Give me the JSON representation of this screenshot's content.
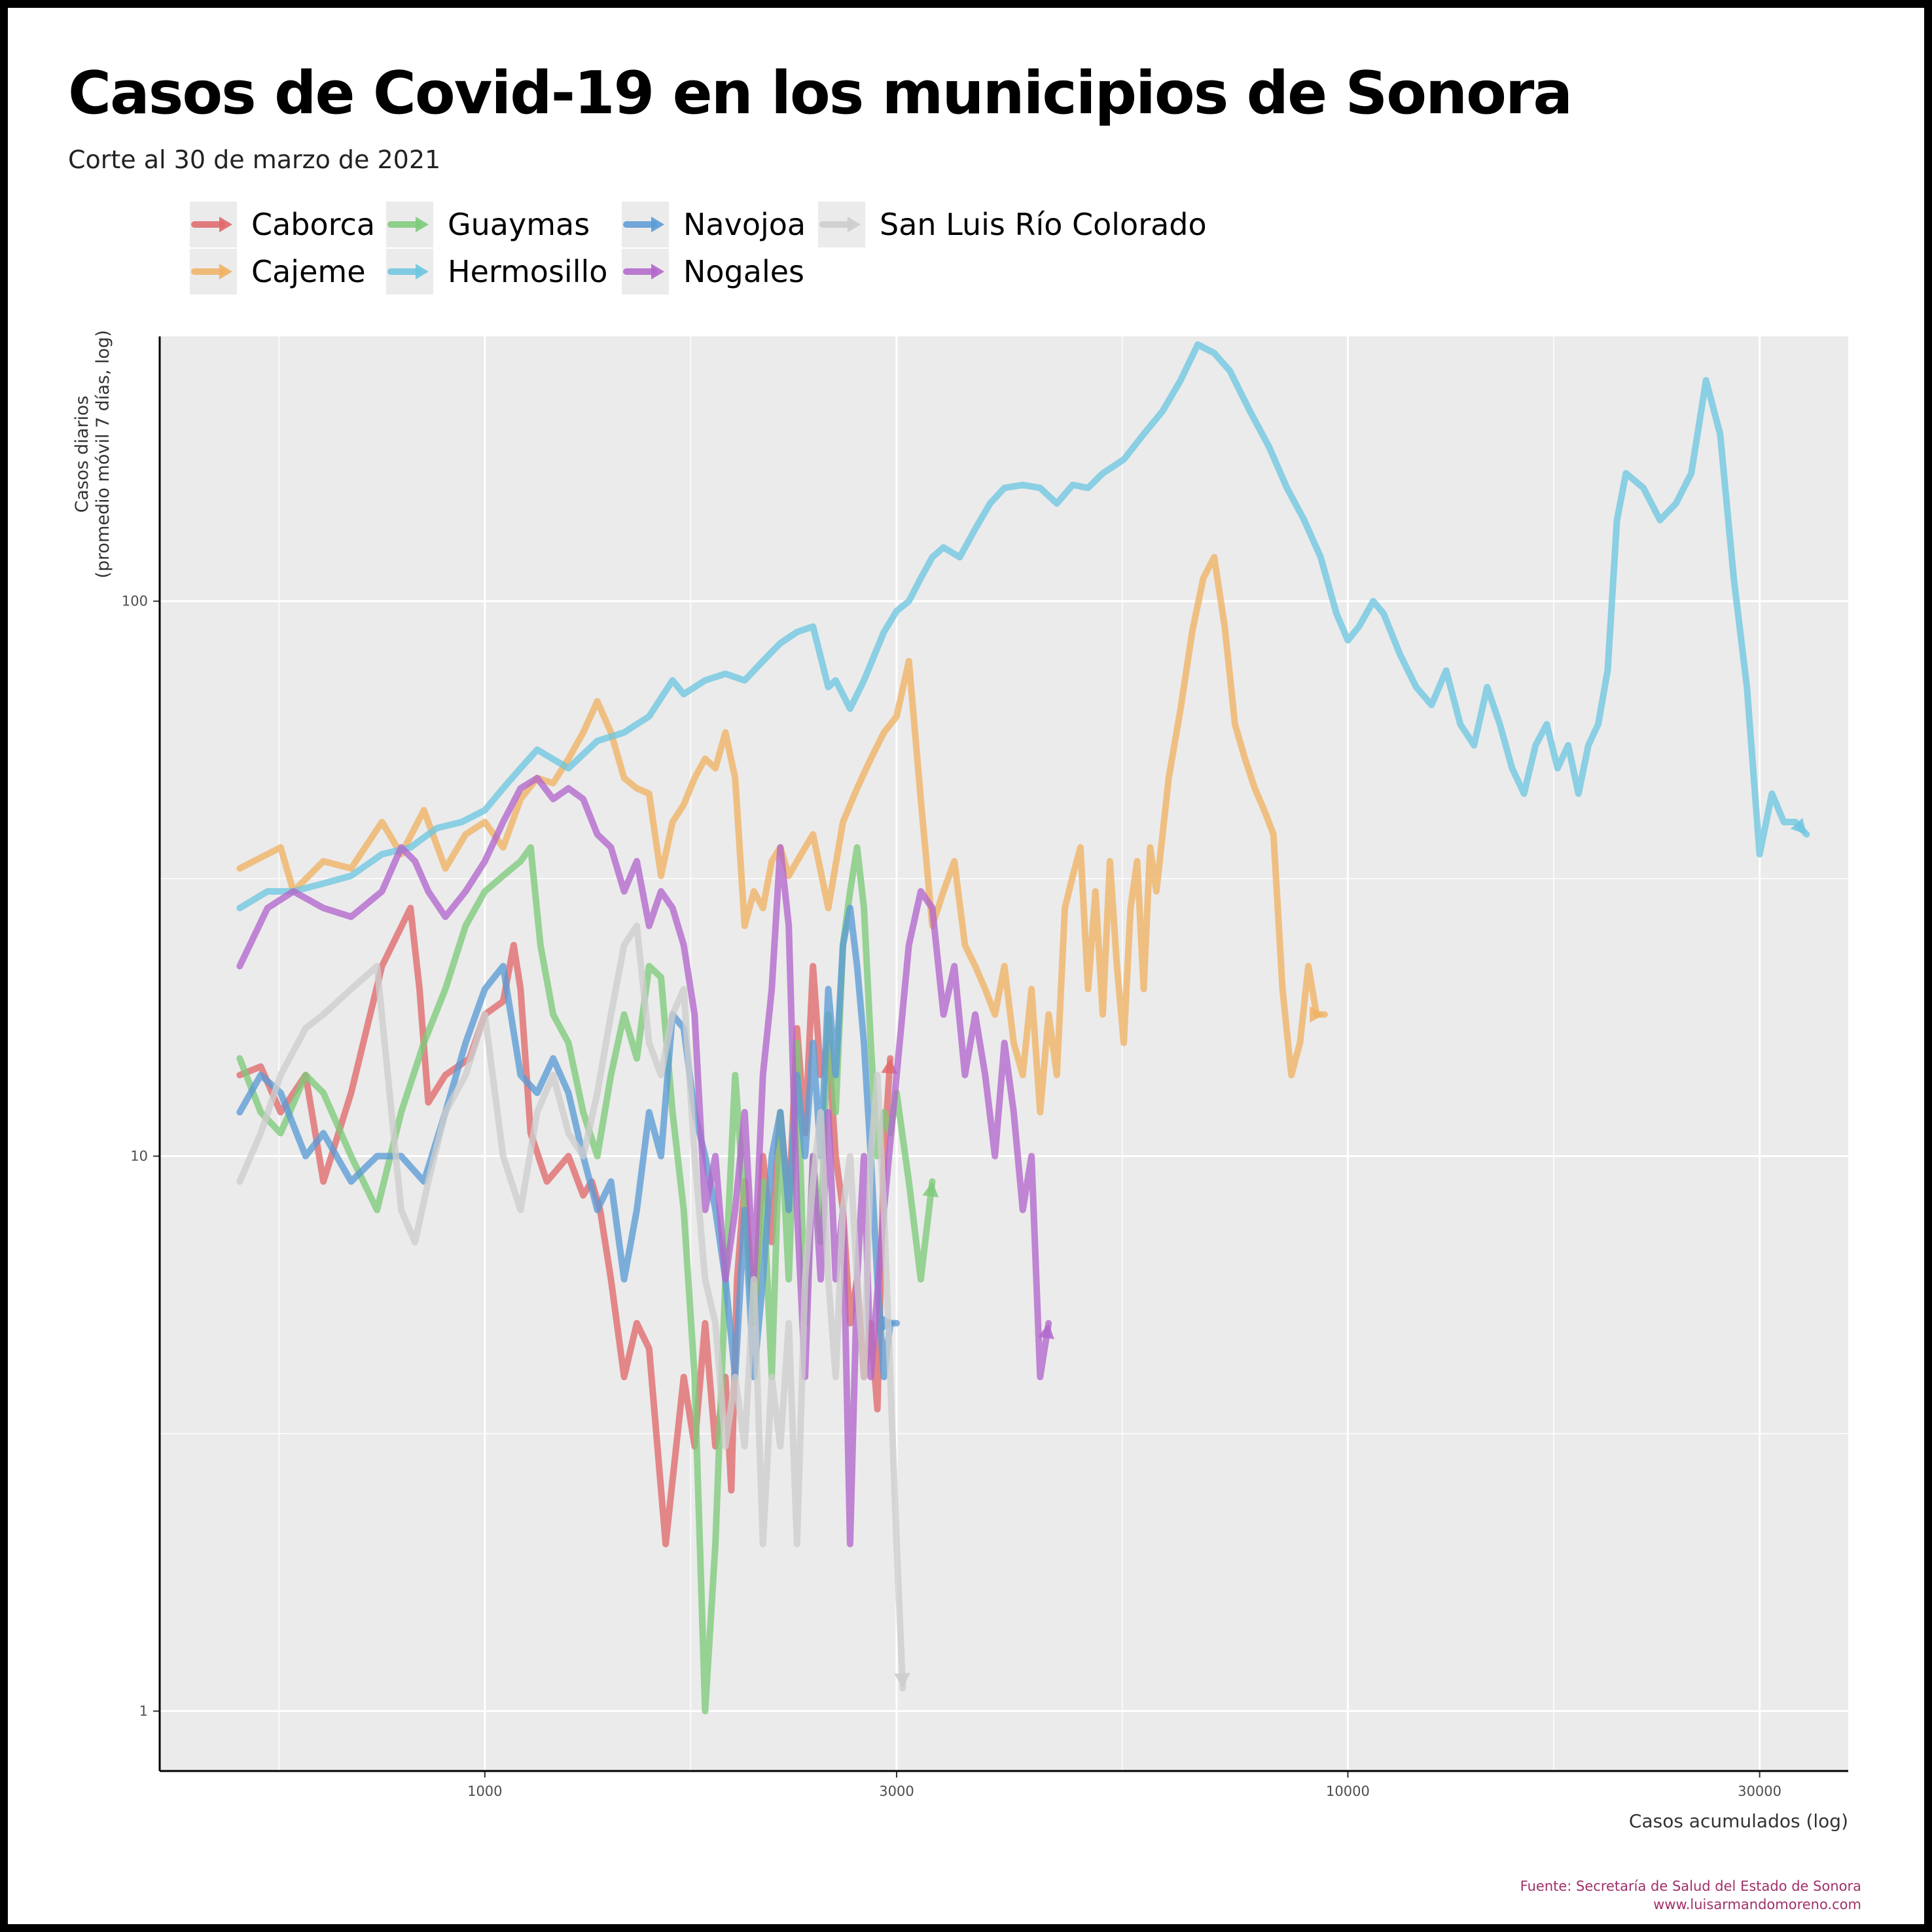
{
  "title": "Casos de Covid-19 en los municipios de Sonora",
  "subtitle": "Corte al 30 de marzo de 2021",
  "source_line1": "Fuente: Secretaría de Salud del Estado de Sonora",
  "source_line2": "www.luisarmandomoreno.com",
  "chart_data": {
    "type": "line",
    "title": "Casos de Covid-19 en los municipios de Sonora",
    "subtitle": "Corte al 30 de marzo de 2021",
    "xlabel": "Casos acumulados (log)",
    "ylabel": "Casos diarios (promedio móvil 7 días, log)",
    "x_scale": "log",
    "y_scale": "log",
    "xlim": [
      420,
      38000
    ],
    "ylim": [
      0.78,
      300
    ],
    "x_ticks": [
      1000,
      3000,
      10000,
      30000
    ],
    "x_tick_labels": [
      "1000",
      "3000",
      "10000",
      "30000"
    ],
    "y_ticks": [
      1,
      10,
      100
    ],
    "y_tick_labels": [
      "1",
      "10",
      "100"
    ],
    "grid": true,
    "legend_position": "top",
    "series": [
      {
        "name": "Caborca",
        "color": "#e0696c",
        "x": [
          520,
          550,
          580,
          620,
          650,
          700,
          760,
          820,
          840,
          860,
          900,
          960,
          1000,
          1050,
          1080,
          1100,
          1130,
          1180,
          1250,
          1300,
          1330,
          1360,
          1400,
          1450,
          1500,
          1550,
          1620,
          1700,
          1750,
          1800,
          1850,
          1900,
          1930,
          1960,
          2000,
          2050,
          2100,
          2150,
          2200,
          2250,
          2300,
          2350,
          2400,
          2450,
          2500,
          2550,
          2600,
          2650,
          2700,
          2750,
          2800,
          2850,
          2900,
          2950
        ],
        "y": [
          14,
          14.5,
          12,
          14,
          9,
          13,
          22,
          28,
          20,
          12.5,
          14,
          15,
          18,
          19,
          24,
          20,
          11,
          9,
          10,
          8.5,
          9,
          8,
          6,
          4,
          5,
          4.5,
          2,
          4,
          3,
          5,
          3,
          4,
          2.5,
          6,
          9,
          5,
          10,
          7,
          12,
          8,
          17,
          11,
          22,
          14,
          16,
          10,
          8,
          5,
          6,
          4,
          5,
          3.5,
          10,
          15
        ]
      },
      {
        "name": "Cajeme",
        "color": "#f0b264",
        "x": [
          520,
          580,
          600,
          650,
          700,
          760,
          800,
          850,
          900,
          950,
          1000,
          1050,
          1100,
          1150,
          1200,
          1250,
          1300,
          1350,
          1400,
          1450,
          1500,
          1550,
          1600,
          1650,
          1700,
          1750,
          1800,
          1850,
          1900,
          1950,
          2000,
          2050,
          2100,
          2150,
          2200,
          2250,
          2300,
          2400,
          2500,
          2600,
          2700,
          2800,
          2900,
          3000,
          3100,
          3200,
          3300,
          3400,
          3500,
          3600,
          3700,
          3800,
          3900,
          4000,
          4100,
          4200,
          4300,
          4400,
          4500,
          4600,
          4700,
          4800,
          4900,
          5000,
          5100,
          5200,
          5300,
          5400,
          5500,
          5600,
          5700,
          5800,
          5900,
          6000,
          6200,
          6400,
          6600,
          6800,
          7000,
          7200,
          7400,
          7600,
          7800,
          8000,
          8200,
          8400,
          8600,
          8800,
          9000,
          9200,
          9400
        ],
        "y": [
          33,
          36,
          30,
          34,
          33,
          40,
          35,
          42,
          33,
          38,
          40,
          36,
          44,
          48,
          47,
          52,
          58,
          66,
          58,
          48,
          46,
          45,
          32,
          40,
          43,
          48,
          52,
          50,
          58,
          48,
          26,
          30,
          28,
          34,
          36,
          32,
          34,
          38,
          28,
          40,
          46,
          52,
          58,
          62,
          78,
          44,
          26,
          30,
          34,
          24,
          22,
          20,
          18,
          22,
          16,
          14,
          20,
          12,
          18,
          14,
          28,
          32,
          36,
          20,
          30,
          18,
          34,
          22,
          16,
          28,
          34,
          20,
          36,
          30,
          48,
          64,
          88,
          110,
          120,
          90,
          60,
          52,
          46,
          42,
          38,
          20,
          14,
          16,
          22,
          18,
          18
        ]
      },
      {
        "name": "Guaymas",
        "color": "#7ecb7a",
        "x": [
          520,
          550,
          580,
          620,
          650,
          700,
          750,
          800,
          850,
          900,
          950,
          1000,
          1050,
          1100,
          1130,
          1160,
          1200,
          1250,
          1300,
          1350,
          1400,
          1450,
          1500,
          1550,
          1600,
          1650,
          1700,
          1750,
          1800,
          1850,
          1900,
          1950,
          2000,
          2050,
          2100,
          2150,
          2200,
          2250,
          2300,
          2350,
          2400,
          2450,
          2500,
          2550,
          2600,
          2650,
          2700,
          2750,
          2800,
          2850,
          2900,
          2950,
          3000,
          3100,
          3200,
          3300
        ],
        "y": [
          15,
          12,
          11,
          14,
          13,
          10,
          8,
          12,
          16,
          20,
          26,
          30,
          32,
          34,
          36,
          24,
          18,
          16,
          12,
          10,
          14,
          18,
          15,
          22,
          21,
          12,
          8,
          4,
          1,
          2,
          6,
          14,
          8,
          5,
          9,
          4,
          12,
          6,
          16,
          5,
          10,
          7,
          18,
          12,
          24,
          30,
          36,
          28,
          16,
          10,
          12,
          11,
          13,
          9,
          6,
          9
        ]
      },
      {
        "name": "Hermosillo",
        "color": "#6ec6e0",
        "x": [
          520,
          560,
          600,
          650,
          700,
          760,
          820,
          880,
          940,
          1000,
          1050,
          1100,
          1150,
          1250,
          1350,
          1450,
          1550,
          1650,
          1700,
          1800,
          1900,
          2000,
          2100,
          2200,
          2300,
          2400,
          2500,
          2550,
          2650,
          2750,
          2900,
          3000,
          3100,
          3200,
          3300,
          3400,
          3550,
          3700,
          3850,
          4000,
          4200,
          4400,
          4600,
          4800,
          5000,
          5200,
          5500,
          5800,
          6100,
          6400,
          6700,
          7000,
          7300,
          7700,
          8100,
          8500,
          8900,
          9300,
          9700,
          10000,
          10300,
          10700,
          11000,
          11500,
          12000,
          12500,
          13000,
          13500,
          14000,
          14500,
          15000,
          15500,
          16000,
          16500,
          17000,
          17500,
          18000,
          18500,
          19000,
          19500,
          20000,
          20500,
          21000,
          22000,
          23000,
          24000,
          25000,
          26000,
          27000,
          28000,
          29000,
          30000,
          31000,
          32000,
          33000,
          34000
        ],
        "y": [
          28,
          30,
          30,
          31,
          32,
          35,
          36,
          39,
          40,
          42,
          46,
          50,
          54,
          50,
          56,
          58,
          62,
          72,
          68,
          72,
          74,
          72,
          78,
          84,
          88,
          90,
          70,
          72,
          64,
          72,
          88,
          96,
          100,
          110,
          120,
          125,
          120,
          135,
          150,
          160,
          162,
          160,
          150,
          162,
          160,
          170,
          180,
          200,
          220,
          250,
          290,
          280,
          260,
          220,
          190,
          160,
          140,
          120,
          95,
          85,
          90,
          100,
          95,
          80,
          70,
          65,
          75,
          60,
          55,
          70,
          60,
          50,
          45,
          55,
          60,
          50,
          55,
          45,
          55,
          60,
          75,
          140,
          170,
          160,
          140,
          150,
          170,
          250,
          200,
          110,
          70,
          35,
          45,
          40,
          40,
          38
        ]
      },
      {
        "name": "Navojoa",
        "color": "#5b9bd5",
        "x": [
          520,
          550,
          580,
          620,
          650,
          700,
          750,
          800,
          850,
          900,
          950,
          1000,
          1050,
          1100,
          1150,
          1200,
          1250,
          1300,
          1350,
          1400,
          1450,
          1500,
          1550,
          1600,
          1650,
          1700,
          1750,
          1800,
          1850,
          1900,
          1950,
          2000,
          2050,
          2100,
          2150,
          2200,
          2250,
          2300,
          2350,
          2400,
          2450,
          2500,
          2550,
          2600,
          2650,
          2700,
          2750,
          2800,
          2850,
          2900,
          2950,
          3000
        ],
        "y": [
          12,
          14,
          13,
          10,
          11,
          9,
          10,
          10,
          9,
          12,
          16,
          20,
          22,
          14,
          13,
          15,
          13,
          10,
          8,
          9,
          6,
          8,
          12,
          10,
          18,
          17,
          12,
          10,
          8,
          6,
          4,
          8,
          4,
          6,
          10,
          12,
          8,
          14,
          10,
          16,
          10,
          20,
          14,
          24,
          28,
          22,
          16,
          10,
          6,
          4,
          5,
          5
        ]
      },
      {
        "name": "Nogales",
        "color": "#b266cc",
        "x": [
          520,
          560,
          600,
          650,
          700,
          760,
          800,
          830,
          860,
          900,
          950,
          1000,
          1050,
          1100,
          1150,
          1200,
          1250,
          1300,
          1350,
          1400,
          1450,
          1500,
          1550,
          1600,
          1650,
          1700,
          1750,
          1800,
          1850,
          1900,
          1950,
          2000,
          2050,
          2100,
          2150,
          2200,
          2250,
          2300,
          2350,
          2400,
          2450,
          2500,
          2550,
          2600,
          2650,
          2700,
          2750,
          2800,
          2900,
          3000,
          3100,
          3200,
          3300,
          3400,
          3500,
          3600,
          3700,
          3800,
          3900,
          4000,
          4100,
          4200,
          4300,
          4400,
          4500
        ],
        "y": [
          22,
          28,
          30,
          28,
          27,
          30,
          36,
          34,
          30,
          27,
          30,
          34,
          40,
          46,
          48,
          44,
          46,
          44,
          38,
          36,
          30,
          34,
          26,
          30,
          28,
          24,
          18,
          8,
          10,
          6,
          8,
          12,
          6,
          14,
          20,
          36,
          26,
          8,
          4,
          10,
          6,
          12,
          6,
          8,
          2,
          6,
          10,
          4,
          8,
          14,
          24,
          30,
          28,
          18,
          22,
          14,
          18,
          14,
          10,
          16,
          12,
          8,
          10,
          4,
          5
        ]
      },
      {
        "name": "San Luis Río Colorado",
        "color": "#cdcdcd",
        "x": [
          520,
          550,
          580,
          620,
          650,
          700,
          750,
          800,
          830,
          860,
          900,
          950,
          1000,
          1050,
          1100,
          1150,
          1200,
          1250,
          1300,
          1350,
          1400,
          1450,
          1500,
          1550,
          1600,
          1650,
          1700,
          1750,
          1800,
          1850,
          1900,
          1950,
          2000,
          2050,
          2100,
          2150,
          2200,
          2250,
          2300,
          2350,
          2400,
          2450,
          2500,
          2550,
          2600,
          2650,
          2700,
          2750,
          2800,
          2850,
          2900,
          2950,
          3000,
          3050
        ],
        "y": [
          9,
          11,
          14,
          17,
          18,
          20,
          22,
          8,
          7,
          9,
          12,
          14,
          18,
          10,
          8,
          12,
          14,
          11,
          10,
          13,
          18,
          24,
          26,
          16,
          14,
          18,
          20,
          10,
          6,
          5,
          3,
          4,
          3,
          6,
          2,
          4,
          3,
          5,
          2,
          6,
          9,
          12,
          6,
          4,
          8,
          10,
          6,
          4,
          10,
          14,
          8,
          4,
          2,
          1.1
        ]
      }
    ]
  }
}
